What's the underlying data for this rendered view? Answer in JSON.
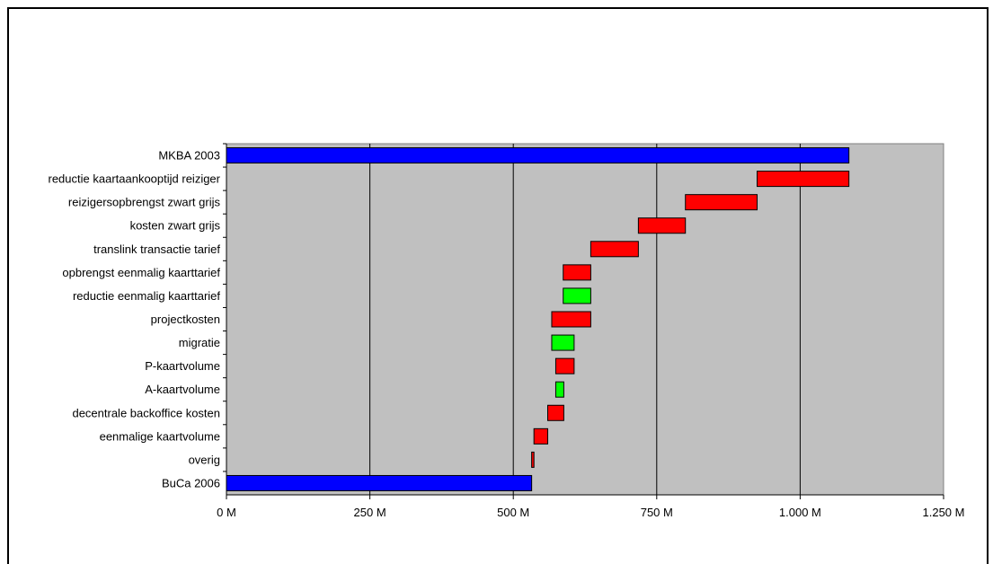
{
  "chart_data": {
    "type": "bar",
    "subtype": "waterfall-horizontal",
    "orientation": "horizontal",
    "categories": [
      "MKBA 2003",
      "reductie kaartaankooptijd reiziger",
      "reizigersopbrengst zwart grijs",
      "kosten zwart grijs",
      "translink transactie tarief",
      "opbrengst eenmalig kaarttarief",
      "reductie eenmalig kaarttarief",
      "projectkosten",
      "migratie",
      "P-kaartvolume",
      "A-kaartvolume",
      "decentrale backoffice kosten",
      "eenmalige kaartvolume",
      "overig",
      "BuCa 2006"
    ],
    "bars": [
      {
        "label": "MKBA 2003",
        "start": 0,
        "end": 1085,
        "color": "#0000FF"
      },
      {
        "label": "reductie kaartaankooptijd reiziger",
        "start": 925,
        "end": 1085,
        "color": "#FF0000"
      },
      {
        "label": "reizigersopbrengst zwart grijs",
        "start": 800,
        "end": 925,
        "color": "#FF0000"
      },
      {
        "label": "kosten zwart grijs",
        "start": 718,
        "end": 800,
        "color": "#FF0000"
      },
      {
        "label": "translink transactie tarief",
        "start": 635,
        "end": 718,
        "color": "#FF0000"
      },
      {
        "label": "opbrengst eenmalig kaarttarief",
        "start": 587,
        "end": 635,
        "color": "#FF0000"
      },
      {
        "label": "reductie eenmalig kaarttarief",
        "start": 587,
        "end": 635,
        "color": "#00FF00"
      },
      {
        "label": "projectkosten",
        "start": 567,
        "end": 635,
        "color": "#FF0000"
      },
      {
        "label": "migratie",
        "start": 567,
        "end": 606,
        "color": "#00FF00"
      },
      {
        "label": "P-kaartvolume",
        "start": 574,
        "end": 606,
        "color": "#FF0000"
      },
      {
        "label": "A-kaartvolume",
        "start": 574,
        "end": 588,
        "color": "#00FF00"
      },
      {
        "label": "decentrale backoffice kosten",
        "start": 560,
        "end": 588,
        "color": "#FF0000"
      },
      {
        "label": "eenmalige kaartvolume",
        "start": 536,
        "end": 560,
        "color": "#FF0000"
      },
      {
        "label": "overig",
        "start": 532,
        "end": 536,
        "color": "#FF0000"
      },
      {
        "label": "BuCa 2006",
        "start": 0,
        "end": 532,
        "color": "#0000FF"
      }
    ],
    "x_ticks": [
      0,
      250,
      500,
      750,
      1000,
      1250
    ],
    "x_tick_labels": [
      "0 M",
      "250 M",
      "500 M",
      "750 M",
      "1.000 M",
      "1.250 M"
    ],
    "xlim": [
      0,
      1250
    ],
    "grid": "vertical-major",
    "plot_background": "#C0C0C0",
    "legend": "none",
    "title": "",
    "xlabel": "",
    "ylabel": ""
  }
}
